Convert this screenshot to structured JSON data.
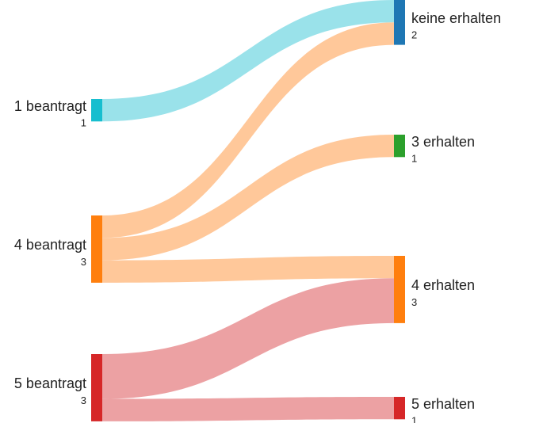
{
  "chart_data": {
    "type": "sankey",
    "nodes": [
      {
        "name": "1 beantragt",
        "value": 1,
        "color": "#17becf"
      },
      {
        "name": "4 beantragt",
        "value": 3,
        "color": "#ff7f0e"
      },
      {
        "name": "5 beantragt",
        "value": 3,
        "color": "#d62728"
      },
      {
        "name": "keine erhalten",
        "value": 2,
        "color": "#1f77b4"
      },
      {
        "name": "3 erhalten",
        "value": 1,
        "color": "#2ca02c"
      },
      {
        "name": "4 erhalten",
        "value": 3,
        "color": "#ff7f0e"
      },
      {
        "name": "5 erhalten",
        "value": 1,
        "color": "#d62728"
      }
    ],
    "links": [
      {
        "source": 0,
        "target": 3,
        "value": 1,
        "color": "#9ae2ea"
      },
      {
        "source": 1,
        "target": 3,
        "value": 1,
        "color": "#ffc89a"
      },
      {
        "source": 1,
        "target": 4,
        "value": 1,
        "color": "#ffc89a"
      },
      {
        "source": 1,
        "target": 5,
        "value": 1,
        "color": "#ffc89a"
      },
      {
        "source": 2,
        "target": 5,
        "value": 2,
        "color": "#eca1a3"
      },
      {
        "source": 2,
        "target": 6,
        "value": 1,
        "color": "#eca1a3"
      }
    ]
  }
}
